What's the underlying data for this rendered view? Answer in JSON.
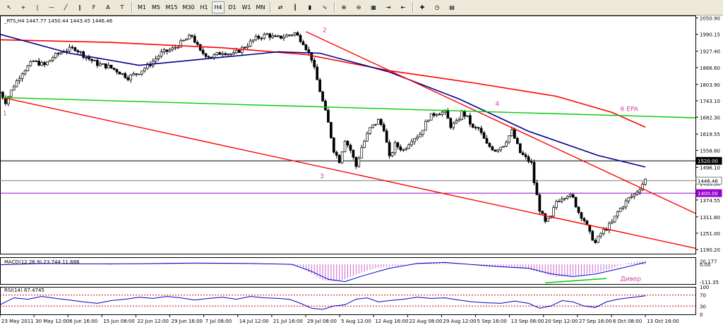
{
  "toolbar": {
    "timeframes": [
      "M1",
      "M5",
      "M15",
      "M30",
      "H1",
      "H4",
      "D1",
      "W1",
      "MN"
    ],
    "active_timeframe": "H4",
    "icons": [
      "cursor-icon",
      "crosshair-icon",
      "vertical-line-icon",
      "horizontal-line-icon",
      "trendline-icon",
      "channel-icon",
      "fibonacci-icon",
      "text-icon",
      "label-icon",
      "arrows-icon",
      "bar-chart-icon",
      "candlestick-icon",
      "line-chart-icon",
      "zoom-in-icon",
      "zoom-out-icon",
      "tile-windows-icon",
      "autoscroll-icon",
      "chart-shift-icon",
      "indicators-icon",
      "periods-icon",
      "templates-icon"
    ]
  },
  "chart_data": [
    {
      "type": "candlestick",
      "title": "_RTS,H4  1447.77 1450.44 1443.45 1446.46",
      "symbol": "_RTS",
      "timeframe": "H4",
      "ohlc_last": {
        "open": 1447.77,
        "high": 1450.44,
        "low": 1443.45,
        "close": 1446.46
      },
      "x_tick_labels": [
        "23 May 2011",
        "30 May 12:00",
        "6 Jun 16:00",
        "15 Jun 08:00",
        "22 Jun 12:00",
        "29 Jun 16:00",
        "7 Jul 08:00",
        "14 Jul 12:00",
        "21 Jul 16:00",
        "29 Jul 08:00",
        "5 Aug 12:00",
        "12 Aug 16:00",
        "22 Aug 08:00",
        "29 Aug 12:00",
        "5 Sep 16:00",
        "13 Sep 08:00",
        "20 Sep 12:00",
        "27 Sep 16:00",
        "6 Oct 08:00",
        "13 Oct 16:00"
      ],
      "y_tick_labels": [
        "2050.90",
        "1990.15",
        "1927.40",
        "1866.60",
        "1803.90",
        "1743.10",
        "1682.30",
        "1619.55",
        "1558.80",
        "1496.10",
        "1435.30",
        "1374.55",
        "1311.80",
        "1251.00",
        "1190.20"
      ],
      "ylim": [
        1175,
        2060
      ],
      "horizontal_lines": [
        {
          "value": 1520.0,
          "label": "1520.00",
          "color": "#000000"
        },
        {
          "value": 1400.0,
          "label": "1400.00",
          "color": "#9900cc"
        },
        {
          "value": 1446.46,
          "label": "1446.46",
          "color": "#808080"
        }
      ],
      "price_path": [
        [
          0,
          1775
        ],
        [
          2,
          1740
        ],
        [
          5,
          1800
        ],
        [
          8,
          1850
        ],
        [
          12,
          1890
        ],
        [
          16,
          1875
        ],
        [
          19,
          1905
        ],
        [
          23,
          1930
        ],
        [
          27,
          1938
        ],
        [
          31,
          1905
        ],
        [
          35,
          1880
        ],
        [
          39,
          1870
        ],
        [
          42,
          1855
        ],
        [
          46,
          1830
        ],
        [
          50,
          1850
        ],
        [
          54,
          1880
        ],
        [
          58,
          1920
        ],
        [
          62,
          1935
        ],
        [
          66,
          1965
        ],
        [
          69,
          1985
        ],
        [
          72,
          1925
        ],
        [
          76,
          1905
        ],
        [
          80,
          1925
        ],
        [
          84,
          1915
        ],
        [
          88,
          1945
        ],
        [
          92,
          1975
        ],
        [
          96,
          1990
        ],
        [
          99,
          1975
        ],
        [
          103,
          1985
        ],
        [
          106,
          1995
        ],
        [
          109,
          1960
        ],
        [
          112,
          1900
        ],
        [
          115,
          1780
        ],
        [
          118,
          1660
        ],
        [
          120,
          1560
        ],
        [
          122,
          1520
        ],
        [
          124,
          1600
        ],
        [
          126,
          1560
        ],
        [
          128,
          1500
        ],
        [
          130,
          1570
        ],
        [
          133,
          1640
        ],
        [
          136,
          1670
        ],
        [
          138,
          1640
        ],
        [
          140,
          1530
        ],
        [
          142,
          1580
        ],
        [
          145,
          1560
        ],
        [
          148,
          1600
        ],
        [
          151,
          1620
        ],
        [
          154,
          1680
        ],
        [
          157,
          1700
        ],
        [
          160,
          1700
        ],
        [
          162,
          1650
        ],
        [
          164,
          1660
        ],
        [
          166,
          1700
        ],
        [
          168,
          1680
        ],
        [
          170,
          1640
        ],
        [
          172,
          1640
        ],
        [
          175,
          1580
        ],
        [
          178,
          1560
        ],
        [
          181,
          1580
        ],
        [
          184,
          1630
        ],
        [
          187,
          1550
        ],
        [
          189,
          1530
        ],
        [
          191,
          1510
        ],
        [
          192,
          1440
        ],
        [
          194,
          1340
        ],
        [
          196,
          1290
        ],
        [
          198,
          1310
        ],
        [
          200,
          1370
        ],
        [
          202,
          1385
        ],
        [
          204,
          1395
        ],
        [
          206,
          1380
        ],
        [
          208,
          1330
        ],
        [
          210,
          1300
        ],
        [
          212,
          1250
        ],
        [
          214,
          1215
        ],
        [
          216,
          1250
        ],
        [
          218,
          1270
        ],
        [
          220,
          1290
        ],
        [
          222,
          1330
        ],
        [
          224,
          1355
        ],
        [
          226,
          1380
        ],
        [
          228,
          1395
        ],
        [
          230,
          1420
        ],
        [
          232,
          1450
        ]
      ],
      "moving_averages": [
        {
          "color": "#ff0000",
          "points": [
            [
              0,
              1970
            ],
            [
              40,
              1960
            ],
            [
              80,
              1940
            ],
            [
              110,
              1915
            ],
            [
              140,
              1855
            ],
            [
              170,
              1810
            ],
            [
              200,
              1760
            ],
            [
              220,
              1700
            ],
            [
              232,
              1645
            ]
          ]
        },
        {
          "color": "#00008b",
          "points": [
            [
              0,
              1990
            ],
            [
              25,
              1920
            ],
            [
              50,
              1875
            ],
            [
              75,
              1900
            ],
            [
              100,
              1925
            ],
            [
              115,
              1920
            ],
            [
              140,
              1850
            ],
            [
              165,
              1750
            ],
            [
              190,
              1630
            ],
            [
              215,
              1540
            ],
            [
              232,
              1497
            ]
          ]
        }
      ],
      "trendlines": [
        {
          "color": "#ff0000",
          "points": [
            [
              1,
              1755
            ],
            [
              250,
              1195
            ]
          ]
        },
        {
          "color": "#ff0000",
          "points": [
            [
              110,
              2000
            ],
            [
              250,
              1325
            ]
          ]
        },
        {
          "color": "#00cc00",
          "points": [
            [
              1,
              1755
            ],
            [
              250,
              1680
            ]
          ]
        }
      ],
      "annotations": [
        {
          "text": "1",
          "x": 1,
          "y": 1690,
          "color": "#cc44aa"
        },
        {
          "text": "2",
          "x": 116,
          "y": 1998,
          "color": "#cc44aa"
        },
        {
          "text": "3",
          "x": 115,
          "y": 1455,
          "color": "#cc44aa"
        },
        {
          "text": "4",
          "x": 178,
          "y": 1725,
          "color": "#cc44aa"
        },
        {
          "text": "6 EPA",
          "x": 223,
          "y": 1705,
          "color": "#cc44aa"
        }
      ]
    },
    {
      "type": "macd",
      "title": "MACD(12,26,9) 23.744 11.686",
      "y_tick_labels": [
        "20.177",
        "0.00",
        "-111.35"
      ],
      "ylim": [
        -125,
        45
      ],
      "histogram": [
        [
          0,
          -5
        ],
        [
          10,
          3
        ],
        [
          20,
          8
        ],
        [
          30,
          2
        ],
        [
          40,
          -5
        ],
        [
          50,
          6
        ],
        [
          60,
          10
        ],
        [
          70,
          8
        ],
        [
          80,
          4
        ],
        [
          90,
          6
        ],
        [
          100,
          5
        ],
        [
          108,
          -15
        ],
        [
          112,
          -60
        ],
        [
          116,
          -100
        ],
        [
          120,
          -110
        ],
        [
          124,
          -95
        ],
        [
          128,
          -65
        ],
        [
          132,
          -40
        ],
        [
          136,
          -20
        ],
        [
          140,
          -15
        ],
        [
          145,
          -5
        ],
        [
          150,
          10
        ],
        [
          155,
          15
        ],
        [
          160,
          12
        ],
        [
          165,
          5
        ],
        [
          170,
          -5
        ],
        [
          175,
          -15
        ],
        [
          180,
          -20
        ],
        [
          185,
          -25
        ],
        [
          190,
          -30
        ],
        [
          195,
          -55
        ],
        [
          200,
          -80
        ],
        [
          205,
          -75
        ],
        [
          210,
          -65
        ],
        [
          215,
          -50
        ],
        [
          220,
          -25
        ],
        [
          225,
          5
        ],
        [
          232,
          23.7
        ]
      ],
      "signal": [
        [
          0,
          -3
        ],
        [
          15,
          5
        ],
        [
          30,
          3
        ],
        [
          50,
          4
        ],
        [
          70,
          8
        ],
        [
          90,
          5
        ],
        [
          105,
          0
        ],
        [
          112,
          -45
        ],
        [
          118,
          -95
        ],
        [
          124,
          -110
        ],
        [
          130,
          -75
        ],
        [
          140,
          -25
        ],
        [
          150,
          5
        ],
        [
          160,
          12
        ],
        [
          170,
          -2
        ],
        [
          180,
          -15
        ],
        [
          190,
          -25
        ],
        [
          198,
          -60
        ],
        [
          206,
          -78
        ],
        [
          214,
          -62
        ],
        [
          222,
          -30
        ],
        [
          232,
          11.7
        ]
      ],
      "divergence_line": {
        "color": "#00cc00",
        "points": [
          [
            196,
            -118
          ],
          [
            218,
            -90
          ]
        ]
      },
      "annotation": {
        "text": "Дивер",
        "x": 223,
        "y": -105,
        "color": "#cc44aa"
      }
    },
    {
      "type": "rsi",
      "title": "RSI(14) 67.4745",
      "y_tick_labels": [
        "100",
        "70",
        "30",
        "0"
      ],
      "ylim": [
        0,
        100
      ],
      "levels": [
        70,
        30
      ],
      "values": [
        [
          0,
          35
        ],
        [
          5,
          60
        ],
        [
          10,
          55
        ],
        [
          15,
          65
        ],
        [
          20,
          58
        ],
        [
          25,
          52
        ],
        [
          30,
          45
        ],
        [
          35,
          40
        ],
        [
          40,
          50
        ],
        [
          45,
          55
        ],
        [
          50,
          62
        ],
        [
          55,
          58
        ],
        [
          60,
          65
        ],
        [
          65,
          60
        ],
        [
          70,
          52
        ],
        [
          75,
          58
        ],
        [
          80,
          62
        ],
        [
          85,
          55
        ],
        [
          90,
          65
        ],
        [
          95,
          60
        ],
        [
          100,
          58
        ],
        [
          104,
          55
        ],
        [
          108,
          40
        ],
        [
          112,
          22
        ],
        [
          116,
          18
        ],
        [
          120,
          30
        ],
        [
          124,
          35
        ],
        [
          128,
          55
        ],
        [
          132,
          60
        ],
        [
          136,
          45
        ],
        [
          140,
          50
        ],
        [
          145,
          55
        ],
        [
          150,
          62
        ],
        [
          155,
          58
        ],
        [
          160,
          60
        ],
        [
          165,
          52
        ],
        [
          170,
          45
        ],
        [
          175,
          42
        ],
        [
          180,
          40
        ],
        [
          185,
          48
        ],
        [
          190,
          40
        ],
        [
          194,
          22
        ],
        [
          198,
          30
        ],
        [
          202,
          50
        ],
        [
          206,
          45
        ],
        [
          210,
          30
        ],
        [
          214,
          25
        ],
        [
          218,
          45
        ],
        [
          222,
          55
        ],
        [
          226,
          60
        ],
        [
          232,
          67.5
        ]
      ]
    }
  ]
}
